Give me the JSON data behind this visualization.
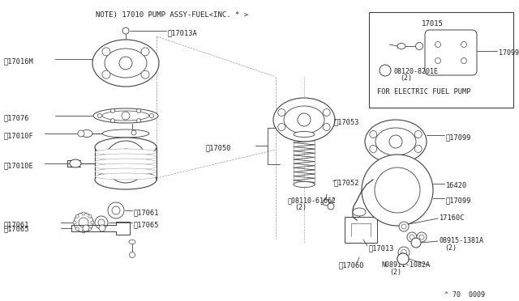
{
  "bg_color": "#ffffff",
  "line_color": "#404040",
  "text_color": "#202020",
  "title_note": "NOTE) 17010 PUMP ASSY-FUEL<INC. * >",
  "footer": "^ 70  0009",
  "inset_label": "FOR ELECTRIC FUEL PUMP",
  "figw": 6.4,
  "figh": 3.72,
  "dpi": 100
}
